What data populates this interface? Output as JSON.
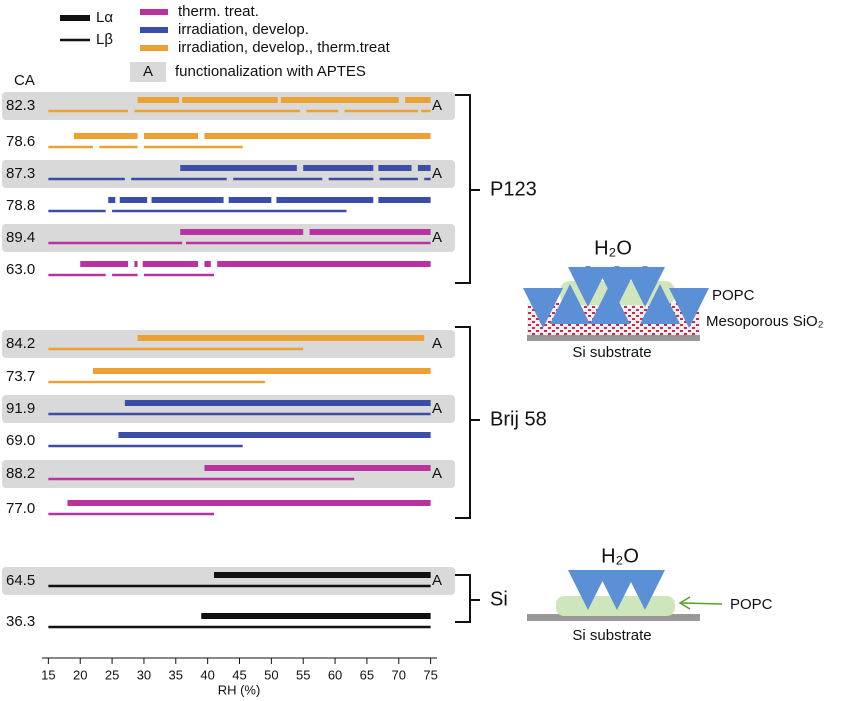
{
  "chart_data": {
    "type": "range",
    "ca_header": "CA",
    "x_label": "RH (%)",
    "xlim": [
      14,
      76
    ],
    "xticks": [
      15,
      20,
      25,
      30,
      35,
      40,
      45,
      50,
      55,
      60,
      65,
      70,
      75
    ],
    "legend": {
      "phases": [
        {
          "name": "Lα"
        },
        {
          "name": "Lβ"
        }
      ],
      "treatments": [
        {
          "name": "therm. treat.",
          "color": "#b8339e"
        },
        {
          "name": "irradiation, develop.",
          "color": "#3a4ea8"
        },
        {
          "name": "irradiation, develop., therm.treat",
          "color": "#eca232"
        }
      ],
      "aptes": {
        "marker": "A",
        "name": "functionalization with  APTES",
        "color": "#d9d9d9"
      }
    },
    "groups": [
      {
        "name": "P123",
        "rows": [
          {
            "ca": 82.3,
            "color": "#eca232",
            "functionalized": true,
            "la": [
              [
                29,
                35.5
              ],
              [
                36,
                51
              ],
              [
                51.5,
                70
              ],
              [
                71,
                75
              ]
            ],
            "lb": [
              [
                15,
                27.5
              ],
              [
                28.5,
                54.5
              ],
              [
                55.5,
                60.5
              ],
              [
                61.5,
                73
              ],
              [
                73.5,
                75
              ]
            ]
          },
          {
            "ca": 78.6,
            "color": "#eca232",
            "functionalized": false,
            "la": [
              [
                19,
                29
              ],
              [
                30,
                38.5
              ],
              [
                39.5,
                75
              ]
            ],
            "lb": [
              [
                15,
                22
              ],
              [
                23,
                29
              ],
              [
                30,
                45.5
              ]
            ]
          },
          {
            "ca": 87.3,
            "color": "#3a4ea8",
            "functionalized": true,
            "la": [
              [
                35.7,
                54
              ],
              [
                55,
                66
              ],
              [
                66.8,
                72
              ],
              [
                73,
                75
              ]
            ],
            "lb": [
              [
                15,
                27
              ],
              [
                28,
                43
              ],
              [
                44,
                58
              ],
              [
                59,
                66
              ],
              [
                67,
                73
              ],
              [
                74,
                75
              ]
            ]
          },
          {
            "ca": 78.8,
            "color": "#3a4ea8",
            "functionalized": false,
            "la": [
              [
                24.4,
                25.5
              ],
              [
                26.2,
                30.5
              ],
              [
                31.2,
                42.5
              ],
              [
                43.3,
                50
              ],
              [
                50.8,
                66
              ],
              [
                66.8,
                75
              ]
            ],
            "lb": [
              [
                15,
                24
              ],
              [
                25,
                61.8
              ]
            ]
          },
          {
            "ca": 89.4,
            "color": "#b8339e",
            "functionalized": true,
            "la": [
              [
                35.7,
                55
              ],
              [
                56,
                75
              ]
            ],
            "lb": [
              [
                15,
                36
              ],
              [
                36.6,
                75
              ]
            ]
          },
          {
            "ca": 63.0,
            "ca_label": "63.0",
            "color": "#b8339e",
            "functionalized": false,
            "la": [
              [
                20,
                27.5
              ],
              [
                28.5,
                29
              ],
              [
                29.8,
                38.5
              ],
              [
                39.5,
                40.5
              ],
              [
                41.5,
                75
              ]
            ],
            "lb": [
              [
                15,
                24
              ],
              [
                25,
                29
              ],
              [
                30,
                41
              ]
            ]
          }
        ]
      },
      {
        "name": "Brij 58",
        "rows": [
          {
            "ca": 84.2,
            "color": "#eca232",
            "functionalized": true,
            "la": [
              [
                29,
                74
              ]
            ],
            "lb": [
              [
                15,
                55
              ]
            ]
          },
          {
            "ca": 73.7,
            "color": "#eca232",
            "functionalized": false,
            "la": [
              [
                22,
                75
              ]
            ],
            "lb": [
              [
                15,
                49
              ]
            ]
          },
          {
            "ca": 91.9,
            "color": "#3a4ea8",
            "functionalized": true,
            "la": [
              [
                27,
                75
              ]
            ],
            "lb": [
              [
                15,
                75
              ]
            ]
          },
          {
            "ca": 69.0,
            "ca_label": "69.0",
            "color": "#3a4ea8",
            "functionalized": false,
            "la": [
              [
                26,
                75
              ]
            ],
            "lb": [
              [
                15,
                45.5
              ]
            ]
          },
          {
            "ca": 88.2,
            "color": "#b8339e",
            "functionalized": true,
            "la": [
              [
                39.5,
                75
              ]
            ],
            "lb": [
              [
                15,
                63
              ]
            ]
          },
          {
            "ca": 77.0,
            "ca_label": "77.0",
            "color": "#b8339e",
            "functionalized": false,
            "la": [
              [
                18,
                75
              ]
            ],
            "lb": [
              [
                15,
                41
              ]
            ]
          }
        ]
      },
      {
        "name": "Si",
        "rows": [
          {
            "ca": 64.5,
            "color": "#111111",
            "functionalized": true,
            "la": [
              [
                41,
                75
              ]
            ],
            "lb": [
              [
                15,
                75
              ]
            ]
          },
          {
            "ca": 36.3,
            "color": "#111111",
            "functionalized": false,
            "la": [
              [
                39,
                75
              ]
            ],
            "lb": [
              [
                15,
                75
              ]
            ]
          }
        ]
      }
    ]
  },
  "diagrams": [
    {
      "water": "H₂O",
      "layer": "POPC",
      "film": "Mesoporous SiO₂",
      "substrate": "Si substrate"
    },
    {
      "water": "H₂O",
      "layer": "POPC",
      "substrate": "Si substrate"
    }
  ]
}
